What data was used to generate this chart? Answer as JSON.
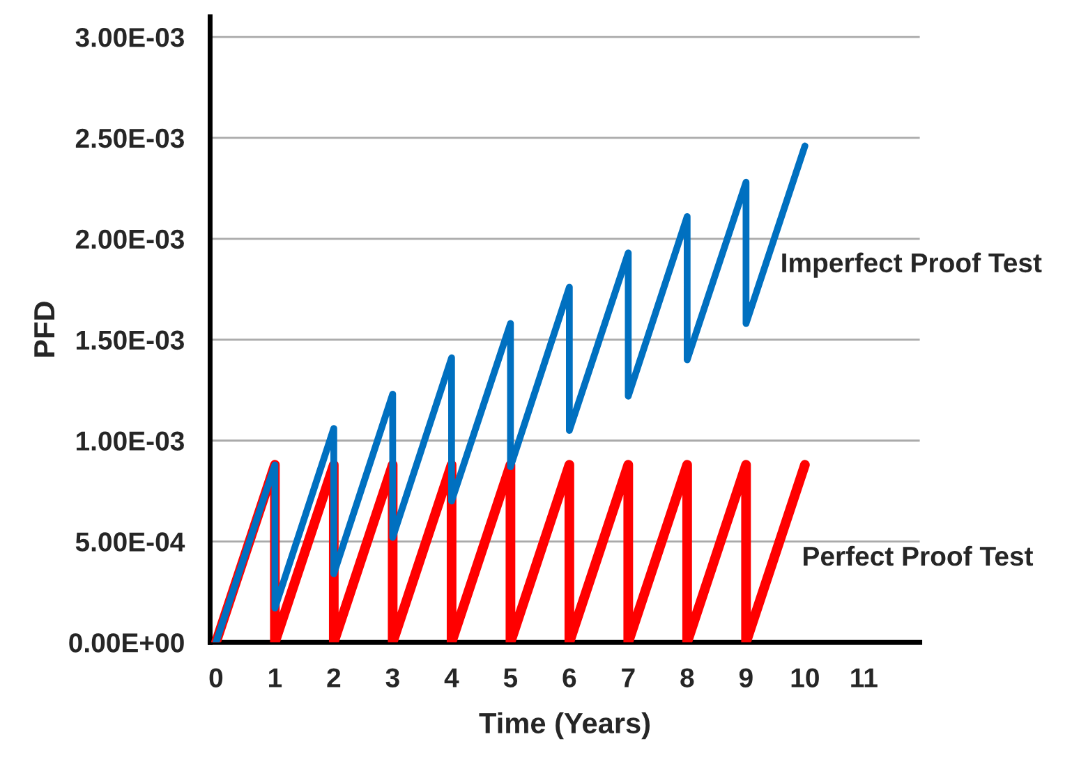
{
  "chart_data": {
    "type": "line",
    "xlabel": "Time (Years)",
    "ylabel": "PFD",
    "series": [
      {
        "color": "#ff0000",
        "x": [
          0,
          1,
          1,
          2,
          2,
          3,
          3,
          4,
          4,
          5,
          5,
          6,
          6,
          7,
          7,
          8,
          8,
          9,
          9,
          10
        ],
        "values": [
          0,
          0.00088,
          0,
          0.00088,
          0,
          0.00088,
          0,
          0.00088,
          0,
          0.00088,
          0,
          0.00088,
          0,
          0.00088,
          0,
          0.00088,
          0,
          0.00088,
          0,
          0.00088
        ]
      },
      {
        "color": "#0070c0",
        "x": [
          0,
          1,
          1,
          2,
          2,
          3,
          3,
          4,
          4,
          5,
          5,
          6,
          6,
          7,
          7,
          8,
          8,
          9,
          9,
          10
        ],
        "values": [
          0,
          0.00088,
          0.00017,
          0.00106,
          0.00034,
          0.00123,
          0.00052,
          0.00141,
          0.0007,
          0.00158,
          0.00087,
          0.00176,
          0.00105,
          0.00193,
          0.00122,
          0.00211,
          0.0014,
          0.00228,
          0.00158,
          0.00246
        ]
      }
    ],
    "annotations": [
      "Imperfect Proof Test",
      "Perfect Proof Test"
    ],
    "xlim": [
      -0.1,
      11.95
    ],
    "ylim": [
      0,
      0.0031
    ],
    "xticks": [
      0,
      1,
      2,
      3,
      4,
      5,
      6,
      7,
      8,
      9,
      10,
      11
    ],
    "yticks": [
      {
        "value": 0,
        "label": "0.00E+00"
      },
      {
        "value": 0.0005,
        "label": "5.00E-04"
      },
      {
        "value": 0.001,
        "label": "1.00E-03"
      },
      {
        "value": 0.0015,
        "label": "1.50E-03"
      },
      {
        "value": 0.002,
        "label": "2.00E-03"
      },
      {
        "value": 0.0025,
        "label": "2.50E-03"
      },
      {
        "value": 0.003,
        "label": "3.00E-03"
      }
    ],
    "grid": "y",
    "marker": "none",
    "line_style": "solid"
  }
}
